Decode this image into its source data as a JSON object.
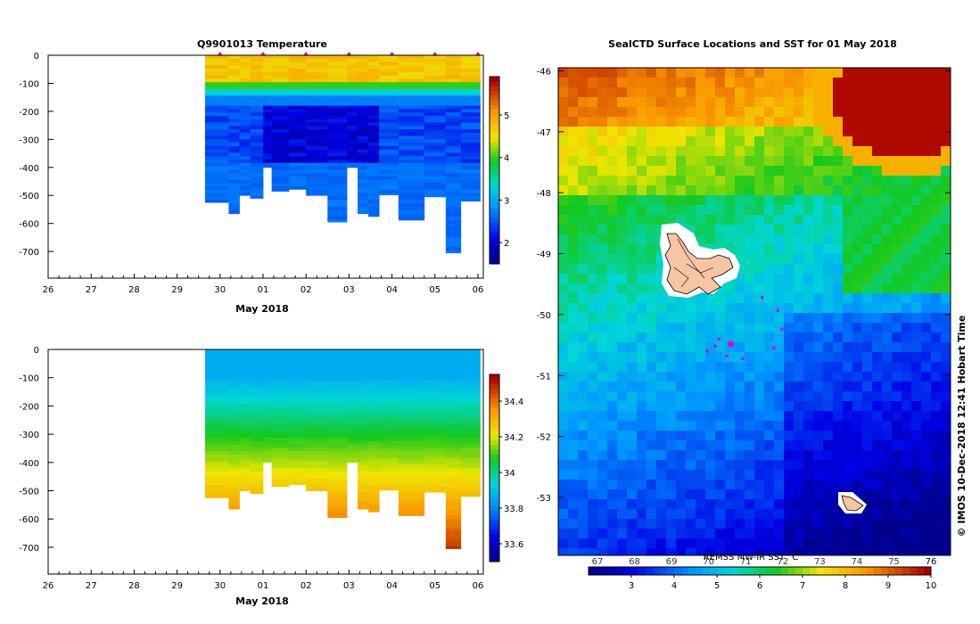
{
  "colors": {
    "background": "#ffffff",
    "track_marker": "#dd00dd",
    "island_fill": "#f7c4a4"
  },
  "chart_data": [
    {
      "type": "heatmap",
      "title": "Q9901013  Temperature",
      "xlabel": "May 2018",
      "ylabel": "",
      "x_ticks": [
        "26",
        "27",
        "28",
        "29",
        "30",
        "01",
        "02",
        "03",
        "04",
        "05",
        "06"
      ],
      "y_ticks": [
        0,
        -100,
        -200,
        -300,
        -400,
        -500,
        -600,
        -700
      ],
      "ylim": [
        -795,
        0
      ],
      "colorbar": {
        "ticks": [
          2,
          3,
          4,
          5
        ],
        "range": [
          1.5,
          5.9
        ]
      },
      "profile_markers": [
        "30",
        "01",
        "02",
        "03",
        "04",
        "05",
        "06"
      ],
      "profiles": [
        {
          "t0": 29.65,
          "t1": 30.2,
          "depth": 525
        },
        {
          "t0": 30.2,
          "t1": 30.45,
          "depth": 565
        },
        {
          "t0": 30.45,
          "t1": 30.7,
          "depth": 500
        },
        {
          "t0": 30.7,
          "t1": 31.0,
          "depth": 510
        },
        {
          "t0": 31.0,
          "t1": 31.2,
          "depth": 400
        },
        {
          "t0": 31.2,
          "t1": 31.6,
          "depth": 485
        },
        {
          "t0": 31.6,
          "t1": 32.0,
          "depth": 478
        },
        {
          "t0": 32.0,
          "t1": 32.5,
          "depth": 500
        },
        {
          "t0": 32.5,
          "t1": 32.95,
          "depth": 595
        },
        {
          "t0": 32.95,
          "t1": 33.2,
          "depth": 400
        },
        {
          "t0": 33.2,
          "t1": 33.45,
          "depth": 565
        },
        {
          "t0": 33.45,
          "t1": 33.7,
          "depth": 575
        },
        {
          "t0": 33.7,
          "t1": 34.15,
          "depth": 498
        },
        {
          "t0": 34.15,
          "t1": 34.75,
          "depth": 588
        },
        {
          "t0": 34.75,
          "t1": 35.25,
          "depth": 505
        },
        {
          "t0": 35.25,
          "t1": 35.6,
          "depth": 705
        },
        {
          "t0": 35.6,
          "t1": 36.05,
          "depth": 520
        }
      ]
    },
    {
      "type": "heatmap",
      "title": "",
      "xlabel": "May 2018",
      "ylabel": "",
      "x_ticks": [
        "26",
        "27",
        "28",
        "29",
        "30",
        "01",
        "02",
        "03",
        "04",
        "05",
        "06"
      ],
      "y_ticks": [
        0,
        -100,
        -200,
        -300,
        -400,
        -500,
        -600,
        -700
      ],
      "ylim": [
        -795,
        0
      ],
      "colorbar": {
        "ticks": [
          33.6,
          33.8,
          34,
          34.2,
          34.4
        ],
        "range": [
          33.5,
          34.55
        ]
      },
      "profiles": [
        {
          "t0": 29.65,
          "t1": 30.2,
          "depth": 525
        },
        {
          "t0": 30.2,
          "t1": 30.45,
          "depth": 565
        },
        {
          "t0": 30.45,
          "t1": 30.7,
          "depth": 500
        },
        {
          "t0": 30.7,
          "t1": 31.0,
          "depth": 510
        },
        {
          "t0": 31.0,
          "t1": 31.2,
          "depth": 400
        },
        {
          "t0": 31.2,
          "t1": 31.6,
          "depth": 485
        },
        {
          "t0": 31.6,
          "t1": 32.0,
          "depth": 478
        },
        {
          "t0": 32.0,
          "t1": 32.5,
          "depth": 500
        },
        {
          "t0": 32.5,
          "t1": 32.95,
          "depth": 595
        },
        {
          "t0": 32.95,
          "t1": 33.2,
          "depth": 400
        },
        {
          "t0": 33.2,
          "t1": 33.45,
          "depth": 565
        },
        {
          "t0": 33.45,
          "t1": 33.7,
          "depth": 575
        },
        {
          "t0": 33.7,
          "t1": 34.15,
          "depth": 498
        },
        {
          "t0": 34.15,
          "t1": 34.75,
          "depth": 588
        },
        {
          "t0": 34.75,
          "t1": 35.25,
          "depth": 505
        },
        {
          "t0": 35.25,
          "t1": 35.6,
          "depth": 705
        },
        {
          "t0": 35.6,
          "t1": 36.05,
          "depth": 520
        }
      ]
    },
    {
      "type": "heatmap",
      "title": "SealCTD Surface Locations and SST for 01 May 2018",
      "xlabel": "",
      "ylabel": "",
      "lat_ticks": [
        "-46",
        "-47",
        "-48",
        "-49",
        "-50",
        "-51",
        "-52",
        "-53"
      ],
      "lat_range": [
        -53.95,
        -45.95
      ],
      "colorbar": {
        "label_partial": "REMSS MW-IR SST °C",
        "bottom_ticks": [
          3,
          4,
          5,
          6,
          7,
          8,
          9,
          10
        ],
        "top_ticks": [
          "67",
          "68",
          "69",
          "70",
          "71",
          "72",
          "73",
          "74",
          "75",
          "76"
        ],
        "range": [
          2,
          10
        ]
      },
      "surface_points_latlon_frac": [
        [
          0.52,
          -49.72
        ],
        [
          0.56,
          -49.93
        ],
        [
          0.57,
          -50.24
        ],
        [
          0.41,
          -50.4
        ],
        [
          0.44,
          -50.48
        ],
        [
          0.4,
          -50.52
        ],
        [
          0.43,
          -50.68
        ],
        [
          0.47,
          -50.72
        ],
        [
          0.55,
          -50.55
        ],
        [
          0.38,
          -50.6
        ]
      ],
      "side_label": "©  IMOS 10-Dec-2018 12:41 Hobart Time"
    }
  ]
}
